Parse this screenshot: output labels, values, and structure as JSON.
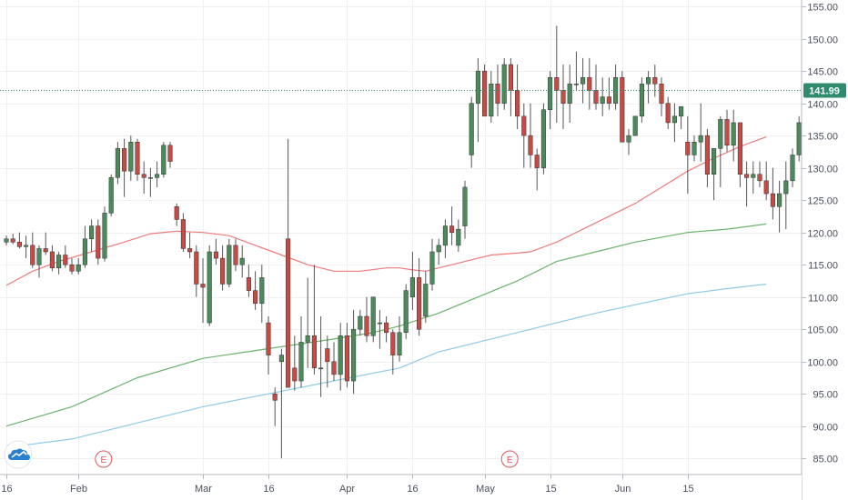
{
  "chart_data": {
    "type": "candlestick",
    "title": "",
    "xlabel": "",
    "ylabel": "",
    "ylim": [
      82.5,
      156
    ],
    "y_ticks": [
      155,
      150,
      145,
      140,
      135,
      130,
      125,
      120,
      115,
      110,
      105,
      100,
      95,
      90,
      85
    ],
    "y_tick_labels": [
      "155.00",
      "150.00",
      "145.00",
      "140.00",
      "135.00",
      "130.00",
      "125.00",
      "120.00",
      "115.00",
      "110.00",
      "105.00",
      "100.00",
      "95.00",
      "90.00",
      "85.00"
    ],
    "x_ticks": [
      {
        "label": "16",
        "index": 0
      },
      {
        "label": "Feb",
        "index": 11
      },
      {
        "label": "Mar",
        "index": 30
      },
      {
        "label": "16",
        "index": 40
      },
      {
        "label": "Apr",
        "index": 52
      },
      {
        "label": "16",
        "index": 62
      },
      {
        "label": "May",
        "index": 73
      },
      {
        "label": "15",
        "index": 83
      },
      {
        "label": "Jun",
        "index": 94
      },
      {
        "label": "15",
        "index": 104
      }
    ],
    "last_price": 141.99,
    "last_price_label": "141.99",
    "earnings_markers": [
      {
        "label": "E",
        "index": 14
      },
      {
        "label": "E",
        "index": 76
      }
    ],
    "colors": {
      "up": "#4c8a5c",
      "down": "#c74a44",
      "wick": "#555555",
      "ma_short": "#f07a7a",
      "ma_mid": "#6ab36a",
      "ma_long": "#8ecae8",
      "last_price": "#2e8b6e",
      "grid": "#f0f0f0"
    },
    "candles": [
      [
        118.5,
        119.5,
        118,
        119
      ],
      [
        119,
        119.8,
        118.2,
        118.5
      ],
      [
        118.5,
        120,
        117.5,
        117.8
      ],
      [
        117.8,
        119.5,
        116,
        118
      ],
      [
        118,
        120,
        114.5,
        115
      ],
      [
        115,
        118,
        113,
        117.5
      ],
      [
        117.5,
        120,
        116.5,
        117
      ],
      [
        117,
        118,
        114,
        114.5
      ],
      [
        114.5,
        117,
        113.5,
        116.5
      ],
      [
        116.5,
        118,
        114.5,
        115
      ],
      [
        115,
        116,
        113.5,
        114
      ],
      [
        114,
        116,
        113.5,
        115
      ],
      [
        115,
        121,
        114.5,
        119
      ],
      [
        119,
        122,
        117,
        121
      ],
      [
        121,
        122,
        115,
        116
      ],
      [
        116,
        124,
        115.5,
        123
      ],
      [
        123,
        129,
        122.5,
        128.5
      ],
      [
        128.5,
        134,
        127.5,
        133
      ],
      [
        133,
        134.5,
        125.5,
        129.5
      ],
      [
        129.5,
        135,
        128,
        134
      ],
      [
        134,
        134.5,
        128,
        129
      ],
      [
        129,
        131,
        126,
        128.5
      ],
      [
        128.5,
        130,
        125.5,
        128.5
      ],
      [
        128.5,
        131,
        127,
        129
      ],
      [
        129,
        134,
        128.5,
        133.5
      ],
      [
        133.5,
        134,
        130,
        131
      ],
      [
        124,
        124.5,
        121,
        122
      ],
      [
        122,
        123,
        117,
        117.5
      ],
      [
        117.5,
        120,
        116,
        117
      ],
      [
        117,
        118,
        110,
        112
      ],
      [
        112,
        116,
        106,
        111.5
      ],
      [
        106,
        118,
        105.5,
        117
      ],
      [
        117,
        119,
        115,
        116
      ],
      [
        116,
        118,
        111,
        112
      ],
      [
        112,
        119,
        111.5,
        118
      ],
      [
        118,
        119,
        114,
        115
      ],
      [
        115,
        118,
        113,
        116
      ],
      [
        113,
        115,
        110,
        111
      ],
      [
        111,
        114,
        108,
        109
      ],
      [
        109,
        115,
        106,
        113
      ],
      [
        106,
        107,
        98,
        101
      ],
      [
        95,
        96,
        90,
        94
      ],
      [
        100,
        102,
        85,
        101
      ],
      [
        119,
        134.5,
        96,
        96
      ],
      [
        99,
        104,
        95.5,
        97
      ],
      [
        97,
        107,
        96,
        103
      ],
      [
        103,
        113,
        99,
        104
      ],
      [
        104,
        115,
        98,
        99
      ],
      [
        99,
        107,
        94.5,
        99
      ],
      [
        102,
        104,
        96,
        100
      ],
      [
        100,
        103,
        97,
        98
      ],
      [
        98,
        106,
        95.5,
        104
      ],
      [
        104,
        106,
        96,
        97
      ],
      [
        97,
        108,
        95,
        105
      ],
      [
        105,
        108,
        104,
        107
      ],
      [
        107,
        110,
        103,
        104
      ],
      [
        104,
        110,
        103,
        110
      ],
      [
        106,
        108,
        102,
        106
      ],
      [
        106,
        107,
        103,
        104.5
      ],
      [
        104.5,
        105,
        98,
        101
      ],
      [
        101,
        107,
        100,
        104.5
      ],
      [
        104.5,
        112,
        103.5,
        111
      ],
      [
        110,
        117,
        108,
        113
      ],
      [
        113,
        116,
        104,
        105
      ],
      [
        107,
        114,
        106,
        112
      ],
      [
        112,
        119,
        111,
        117
      ],
      [
        117,
        119,
        115,
        118
      ],
      [
        118,
        122,
        116,
        121
      ],
      [
        121,
        124,
        118,
        120
      ],
      [
        118,
        122,
        117,
        120.5
      ],
      [
        121,
        128,
        119,
        127
      ],
      [
        132,
        141,
        130,
        140
      ],
      [
        140,
        147,
        134,
        145
      ],
      [
        145,
        146,
        138,
        138
      ],
      [
        138,
        145,
        137,
        143
      ],
      [
        143,
        146,
        138,
        140
      ],
      [
        140,
        147,
        139,
        146
      ],
      [
        146,
        147,
        138,
        142
      ],
      [
        142,
        146,
        136,
        138
      ],
      [
        138,
        140,
        130,
        135
      ],
      [
        135,
        140,
        130,
        132
      ],
      [
        132,
        133,
        126.5,
        130
      ],
      [
        130,
        140,
        129,
        139
      ],
      [
        139,
        145,
        136,
        144
      ],
      [
        144,
        152,
        137,
        142
      ],
      [
        142,
        146,
        136,
        140
      ],
      [
        140,
        146,
        137,
        143
      ],
      [
        143,
        148,
        142,
        143
      ],
      [
        143,
        147,
        140,
        144
      ],
      [
        144,
        147,
        139,
        142
      ],
      [
        142,
        146,
        139,
        140
      ],
      [
        140,
        144,
        138,
        141
      ],
      [
        141,
        144,
        139,
        140
      ],
      [
        140,
        146,
        139,
        144
      ],
      [
        144,
        145,
        134,
        134
      ],
      [
        134,
        136,
        132,
        135
      ],
      [
        135,
        138,
        135,
        138
      ],
      [
        138,
        144,
        137,
        143
      ],
      [
        143,
        145,
        140,
        144
      ],
      [
        144,
        146,
        141,
        143
      ],
      [
        143,
        144,
        138,
        140
      ],
      [
        140,
        141,
        136,
        137
      ],
      [
        137,
        140,
        134,
        138
      ],
      [
        138,
        139,
        136,
        139.5
      ],
      [
        134,
        138,
        126,
        132
      ],
      [
        132,
        135,
        131,
        134
      ],
      [
        134,
        140,
        131,
        135
      ],
      [
        135,
        136,
        127,
        129
      ],
      [
        129,
        133,
        125,
        133
      ],
      [
        133,
        138,
        127,
        137.5
      ],
      [
        137.5,
        139,
        132.5,
        133.5
      ],
      [
        133.5,
        139,
        131,
        137
      ],
      [
        137,
        137,
        127,
        129
      ],
      [
        129,
        131,
        124,
        128.5
      ],
      [
        128.5,
        131,
        126,
        129
      ],
      [
        129,
        131,
        127,
        128
      ],
      [
        128,
        131,
        125,
        126
      ],
      [
        126,
        130,
        122,
        124
      ],
      [
        124,
        128,
        120,
        126
      ],
      [
        126,
        131,
        120.5,
        128
      ],
      [
        128,
        133,
        127,
        132
      ],
      [
        132,
        138,
        131,
        137
      ],
      [
        137,
        142.5,
        136,
        141.99
      ]
    ],
    "series": [
      {
        "values": [
          [
            0,
            111.8
          ],
          [
            4,
            114
          ],
          [
            8,
            115.5
          ],
          [
            13,
            117
          ],
          [
            18,
            118.5
          ],
          [
            22,
            119.8
          ],
          [
            26,
            120.2
          ],
          [
            30,
            120
          ],
          [
            34,
            119.5
          ],
          [
            38,
            118
          ],
          [
            42,
            116.5
          ],
          [
            46,
            115
          ],
          [
            50,
            114
          ],
          [
            54,
            114
          ],
          [
            58,
            114.5
          ],
          [
            60,
            114.5
          ],
          [
            62,
            114.2
          ],
          [
            64,
            114
          ],
          [
            66,
            114.5
          ],
          [
            70,
            115.5
          ],
          [
            74,
            116.5
          ],
          [
            78,
            116.8
          ],
          [
            80,
            117
          ],
          [
            84,
            118.5
          ],
          [
            88,
            120.5
          ],
          [
            92,
            122.5
          ],
          [
            96,
            124.5
          ],
          [
            100,
            127
          ],
          [
            104,
            129.5
          ],
          [
            108,
            131.5
          ],
          [
            112,
            133.3
          ],
          [
            116,
            134.8
          ]
        ]
      },
      {
        "values": [
          [
            0,
            90
          ],
          [
            10,
            93
          ],
          [
            20,
            97.5
          ],
          [
            30,
            100.5
          ],
          [
            40,
            102
          ],
          [
            50,
            103.5
          ],
          [
            56,
            104.5
          ],
          [
            60,
            105.5
          ],
          [
            66,
            107.5
          ],
          [
            72,
            110
          ],
          [
            78,
            112.5
          ],
          [
            84,
            115.5
          ],
          [
            90,
            117
          ],
          [
            96,
            118.5
          ],
          [
            104,
            120
          ],
          [
            110,
            120.5
          ],
          [
            116,
            121.3
          ]
        ]
      },
      {
        "values": [
          [
            0,
            86.7
          ],
          [
            10,
            88
          ],
          [
            20,
            90.5
          ],
          [
            30,
            93
          ],
          [
            40,
            95
          ],
          [
            50,
            97
          ],
          [
            60,
            99
          ],
          [
            66,
            101.5
          ],
          [
            72,
            103
          ],
          [
            78,
            104.5
          ],
          [
            84,
            106
          ],
          [
            90,
            107.5
          ],
          [
            96,
            108.8
          ],
          [
            104,
            110.5
          ],
          [
            110,
            111.3
          ],
          [
            116,
            112
          ]
        ]
      }
    ]
  }
}
